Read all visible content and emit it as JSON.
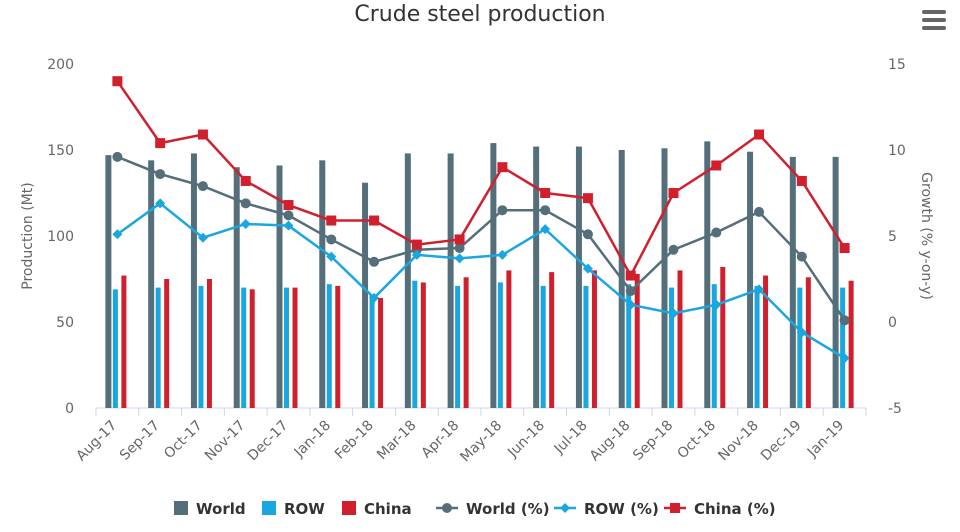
{
  "title": "Crude steel production",
  "menu_icon": "hamburger-menu-icon",
  "chart_data": {
    "type": "bar",
    "title": "Crude steel production",
    "categories": [
      "Aug-17",
      "Sep-17",
      "Oct-17",
      "Nov-17",
      "Dec-17",
      "Jan-18",
      "Feb-18",
      "Mar-18",
      "Apr-18",
      "May-18",
      "Jun-18",
      "Jul-18",
      "Aug-18",
      "Sep-18",
      "Oct-18",
      "Nov-18",
      "Dec-19",
      "Jan-19"
    ],
    "y_left": {
      "label": "Production (Mt)",
      "lim": [
        0,
        200
      ],
      "ticks": [
        0,
        50,
        100,
        150,
        200
      ]
    },
    "y_right": {
      "label": "Growth (% y-on-y)",
      "lim": [
        -5,
        15
      ],
      "ticks": [
        -5,
        0,
        5,
        10,
        15
      ]
    },
    "grid": false,
    "legend_position": "bottom",
    "series": [
      {
        "name": "World",
        "type": "bar",
        "axis": "left",
        "color": "#546e7a",
        "values": [
          147,
          144,
          148,
          140,
          141,
          144,
          131,
          148,
          148,
          154,
          152,
          152,
          150,
          151,
          155,
          149,
          146,
          146
        ]
      },
      {
        "name": "ROW",
        "type": "bar",
        "axis": "left",
        "color": "#1aa7e0",
        "values": [
          69,
          70,
          71,
          70,
          70,
          72,
          66,
          74,
          71,
          73,
          71,
          71,
          72,
          70,
          72,
          71,
          70,
          70
        ]
      },
      {
        "name": "China",
        "type": "bar",
        "axis": "left",
        "color": "#d0202e",
        "values": [
          77,
          75,
          75,
          69,
          70,
          71,
          64,
          73,
          76,
          80,
          79,
          80,
          78,
          80,
          82,
          77,
          76,
          74
        ]
      },
      {
        "name": "World (%)",
        "type": "line",
        "axis": "right",
        "marker": "circle",
        "color": "#546e7a",
        "values": [
          9.6,
          8.6,
          7.9,
          6.9,
          6.2,
          4.8,
          3.5,
          4.2,
          4.3,
          6.5,
          6.5,
          5.1,
          1.8,
          4.2,
          5.2,
          6.4,
          3.8,
          0.1
        ]
      },
      {
        "name": "ROW (%)",
        "type": "line",
        "axis": "right",
        "marker": "diamond",
        "color": "#1aa7e0",
        "values": [
          5.1,
          6.9,
          4.9,
          5.7,
          5.6,
          3.8,
          1.4,
          3.9,
          3.7,
          3.9,
          5.4,
          3.1,
          1.0,
          0.5,
          1.0,
          1.9,
          -0.6,
          -2.1
        ]
      },
      {
        "name": "China (%)",
        "type": "line",
        "axis": "right",
        "marker": "square",
        "color": "#d0202e",
        "values": [
          14.0,
          10.4,
          10.9,
          8.2,
          6.8,
          5.9,
          5.9,
          4.5,
          4.8,
          9.0,
          7.5,
          7.2,
          2.7,
          7.5,
          9.1,
          10.9,
          8.2,
          4.3
        ]
      }
    ]
  }
}
